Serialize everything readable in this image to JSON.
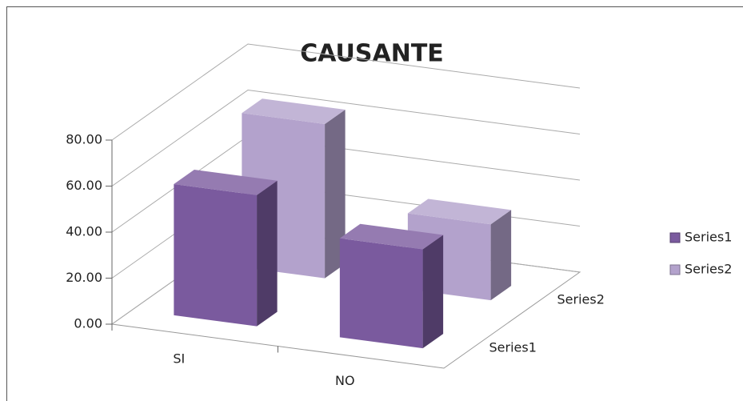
{
  "chart_data": {
    "type": "bar3d",
    "title": "CAUSANTE",
    "categories": [
      "SI",
      "NO"
    ],
    "series": [
      {
        "name": "Series1",
        "color": "#7a5a9e",
        "values": [
          57,
          43
        ]
      },
      {
        "name": "Series2",
        "color": "#b3a2cc",
        "values": [
          67,
          33
        ]
      }
    ],
    "ylim": [
      0,
      80
    ],
    "yticks": [
      {
        "value": 0,
        "label": "0.00"
      },
      {
        "value": 20,
        "label": "20.00"
      },
      {
        "value": 40,
        "label": "40.00"
      },
      {
        "value": 60,
        "label": "60.00"
      },
      {
        "value": 80,
        "label": "80.00"
      }
    ],
    "grid": true,
    "legend": "right"
  }
}
